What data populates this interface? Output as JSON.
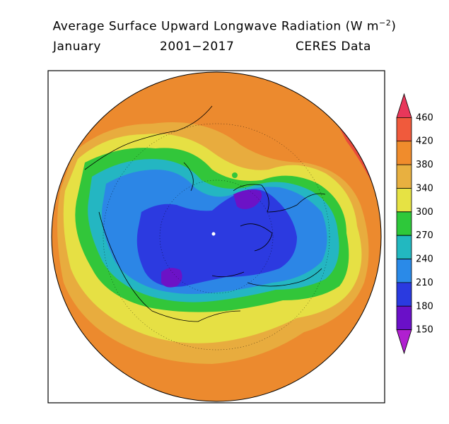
{
  "title": {
    "line1_text": "Average Surface Upward Longwave Radiation (W m",
    "line1_exp": "−2",
    "line1_close": ")",
    "month": "January",
    "years": "2001−2017",
    "source": "CERES Data"
  },
  "colorbar": {
    "levels": [
      "460",
      "420",
      "380",
      "340",
      "300",
      "270",
      "240",
      "210",
      "180",
      "150"
    ],
    "colors": [
      "#e8375a",
      "#f05a3c",
      "#f08c2c",
      "#e8b040",
      "#e6e244",
      "#2ec83a",
      "#22b8c0",
      "#2a8ae8",
      "#2a3ae0",
      "#6a10c8",
      "#b020d0"
    ]
  },
  "map": {
    "projection": "north-polar-stereographic",
    "field_colors": {
      "red": "#e84a3a",
      "orange": "#ec8a2e",
      "lightorange": "#e8ac3e",
      "yellow": "#e6e044",
      "green": "#32c63a",
      "cyan": "#24b6c2",
      "blue": "#2c86e6",
      "darkblue": "#2c3ae0",
      "purple": "#6c12c6"
    }
  }
}
